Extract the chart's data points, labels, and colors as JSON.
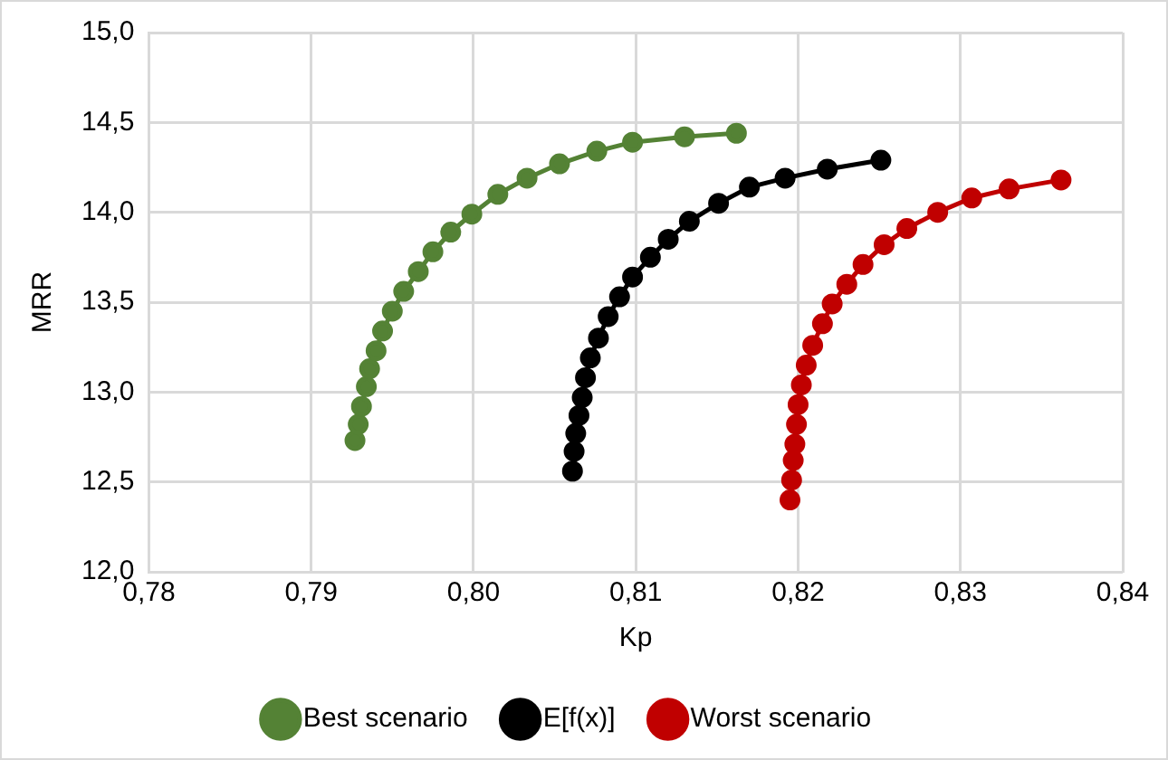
{
  "chart_data": {
    "type": "line",
    "xlabel": "Kp",
    "ylabel": "MRR",
    "marker": "circle",
    "line_style": "solid",
    "grid": true,
    "legend": "bottom",
    "xlim": [
      0.78,
      0.84
    ],
    "ylim": [
      12,
      15
    ],
    "xticks": [
      {
        "value": 0.78,
        "label": "0,78"
      },
      {
        "value": 0.79,
        "label": "0,79"
      },
      {
        "value": 0.8,
        "label": "0,80"
      },
      {
        "value": 0.81,
        "label": "0,81"
      },
      {
        "value": 0.82,
        "label": "0,82"
      },
      {
        "value": 0.83,
        "label": "0,83"
      },
      {
        "value": 0.84,
        "label": "0,84"
      }
    ],
    "yticks": [
      {
        "value": 12,
        "label": "12,0"
      },
      {
        "value": 12.5,
        "label": "12,5"
      },
      {
        "value": 13,
        "label": "13,0"
      },
      {
        "value": 13.5,
        "label": "13,5"
      },
      {
        "value": 14,
        "label": "14,0"
      },
      {
        "value": 14.5,
        "label": "14,5"
      },
      {
        "value": 15,
        "label": "15,0"
      }
    ],
    "series": [
      {
        "name": "Best scenario",
        "color": "#548235",
        "x": [
          0.7927,
          0.7929,
          0.7931,
          0.7934,
          0.7936,
          0.794,
          0.7944,
          0.795,
          0.7957,
          0.7966,
          0.7975,
          0.7986,
          0.7999,
          0.8015,
          0.8033,
          0.8053,
          0.8076,
          0.8098,
          0.813,
          0.8162
        ],
        "values": [
          12.73,
          12.82,
          12.92,
          13.03,
          13.13,
          13.23,
          13.34,
          13.45,
          13.56,
          13.67,
          13.78,
          13.89,
          13.99,
          14.1,
          14.19,
          14.27,
          14.34,
          14.39,
          14.42,
          14.44
        ]
      },
      {
        "name": "E[f(x)]",
        "color": "#000000",
        "x": [
          0.8061,
          0.8062,
          0.8063,
          0.8065,
          0.8067,
          0.8069,
          0.8072,
          0.8077,
          0.8083,
          0.809,
          0.8098,
          0.8109,
          0.812,
          0.8133,
          0.8151,
          0.817,
          0.8192,
          0.8218,
          0.8251
        ],
        "values": [
          12.56,
          12.67,
          12.77,
          12.87,
          12.97,
          13.08,
          13.19,
          13.3,
          13.42,
          13.53,
          13.64,
          13.75,
          13.85,
          13.95,
          14.05,
          14.14,
          14.19,
          14.24,
          14.29
        ]
      },
      {
        "name": "Worst scenario",
        "color": "#c00000",
        "x": [
          0.8195,
          0.8196,
          0.8197,
          0.8198,
          0.8199,
          0.82,
          0.8202,
          0.8205,
          0.8209,
          0.8215,
          0.8221,
          0.823,
          0.824,
          0.8253,
          0.8267,
          0.8286,
          0.8307,
          0.833,
          0.8362
        ],
        "values": [
          12.4,
          12.51,
          12.62,
          12.71,
          12.82,
          12.93,
          13.04,
          13.15,
          13.26,
          13.38,
          13.49,
          13.6,
          13.71,
          13.82,
          13.91,
          14,
          14.08,
          14.13,
          14.18
        ]
      }
    ]
  }
}
